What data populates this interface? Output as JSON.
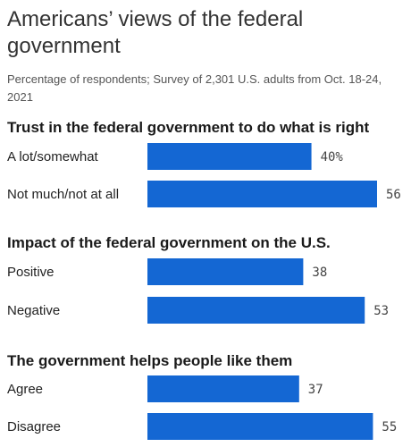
{
  "title": "Americans’ views of the federal government",
  "subtitle": "Percentage of respondents; Survey of 2,301 U.S. adults from Oct. 18-24, 2021",
  "colors": {
    "bar": "#1467d3"
  },
  "chart_data": {
    "type": "bar",
    "orientation": "horizontal",
    "xlim": [
      0,
      60
    ],
    "groups": [
      {
        "title": "Trust in the federal government to do what is right",
        "categories": [
          "A lot/somewhat",
          "Not much/not at all"
        ],
        "values": [
          40,
          56
        ],
        "value_labels": [
          "40%",
          "56"
        ]
      },
      {
        "title": "Impact of the federal government on the U.S.",
        "categories": [
          "Positive",
          "Negative"
        ],
        "values": [
          38,
          53
        ],
        "value_labels": [
          "38",
          "53"
        ]
      },
      {
        "title": "The government helps people like them",
        "categories": [
          "Agree",
          "Disagree"
        ],
        "values": [
          37,
          55
        ],
        "value_labels": [
          "37",
          "55"
        ]
      }
    ]
  }
}
